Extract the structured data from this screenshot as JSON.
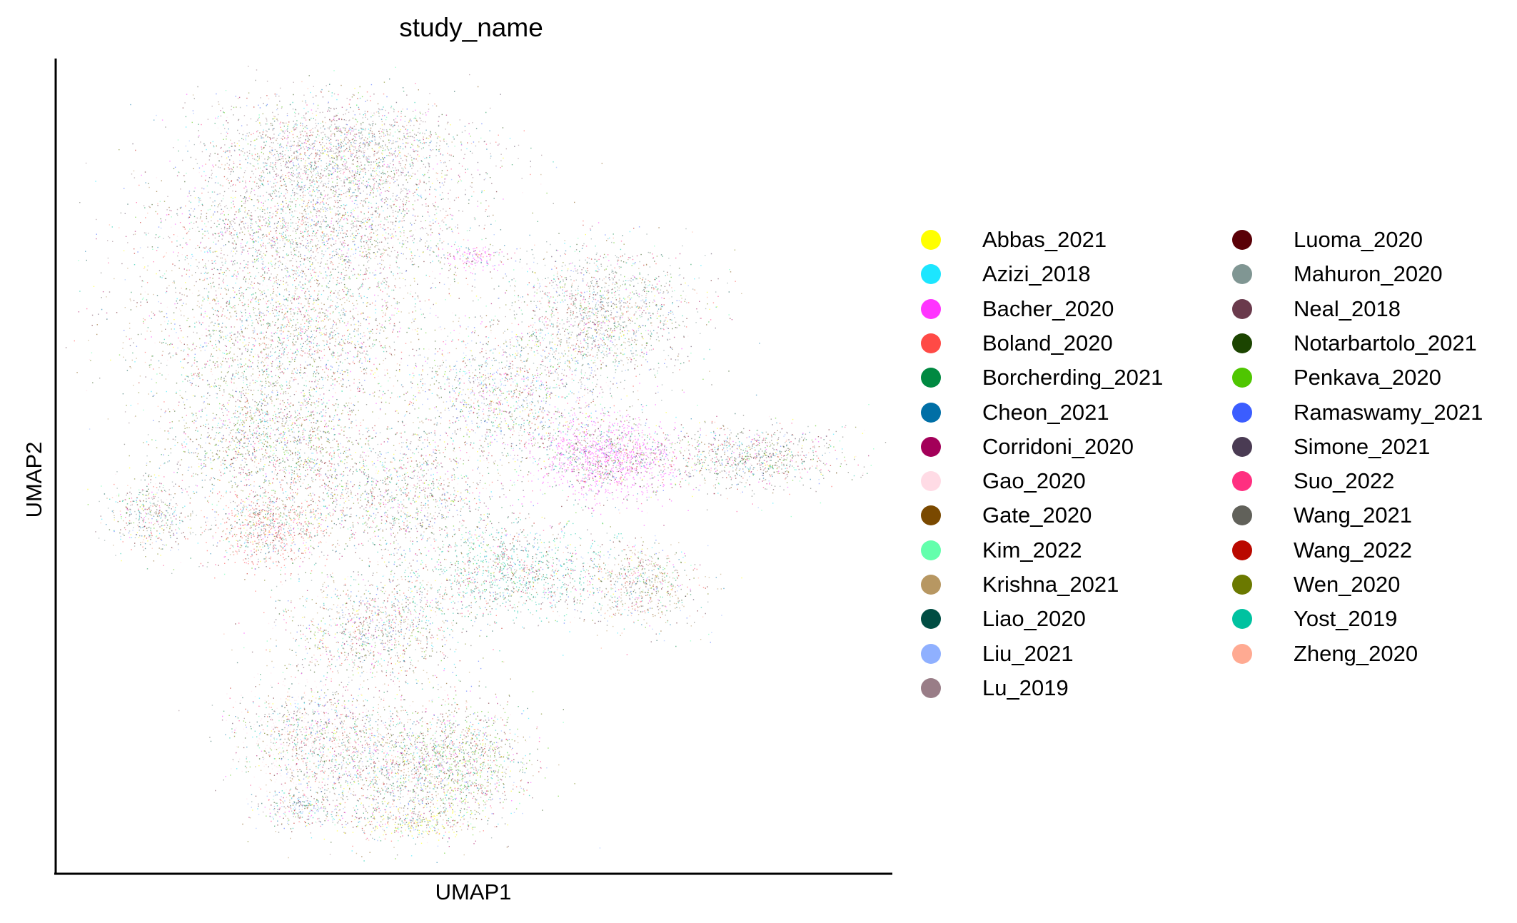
{
  "chart_data": {
    "type": "scatter",
    "title": "study_name",
    "xlabel": "UMAP1",
    "ylabel": "UMAP2",
    "grid": false,
    "x_ticks": false,
    "y_ticks": false,
    "legend_position": "right-outside",
    "legend_columns": 2,
    "series": [
      {
        "name": "Abbas_2021",
        "color": "#FFFF00"
      },
      {
        "name": "Azizi_2018",
        "color": "#1CE6FF"
      },
      {
        "name": "Bacher_2020",
        "color": "#FF34FF"
      },
      {
        "name": "Boland_2020",
        "color": "#FF4A46"
      },
      {
        "name": "Borcherding_2021",
        "color": "#008941"
      },
      {
        "name": "Cheon_2021",
        "color": "#006FA6"
      },
      {
        "name": "Corridoni_2020",
        "color": "#A30059"
      },
      {
        "name": "Gao_2020",
        "color": "#FFDBE5"
      },
      {
        "name": "Gate_2020",
        "color": "#7A4900"
      },
      {
        "name": "Kim_2022",
        "color": "#63FFAC"
      },
      {
        "name": "Krishna_2021",
        "color": "#B79762"
      },
      {
        "name": "Liao_2020",
        "color": "#004D43"
      },
      {
        "name": "Liu_2021",
        "color": "#8FB0FF"
      },
      {
        "name": "Lu_2019",
        "color": "#997D87"
      },
      {
        "name": "Luoma_2020",
        "color": "#5A0007"
      },
      {
        "name": "Mahuron_2020",
        "color": "#809693"
      },
      {
        "name": "Neal_2018",
        "color": "#6A3A4C"
      },
      {
        "name": "Notarbartolo_2021",
        "color": "#1B4400"
      },
      {
        "name": "Penkava_2020",
        "color": "#4FC601"
      },
      {
        "name": "Ramaswamy_2021",
        "color": "#3B5DFF"
      },
      {
        "name": "Simone_2021",
        "color": "#4A3B53"
      },
      {
        "name": "Suo_2022",
        "color": "#FF2F80"
      },
      {
        "name": "Wang_2021",
        "color": "#61615A"
      },
      {
        "name": "Wang_2022",
        "color": "#BA0900"
      },
      {
        "name": "Wen_2020",
        "color": "#6B7900"
      },
      {
        "name": "Yost_2019",
        "color": "#00C2A0"
      },
      {
        "name": "Zheng_2020",
        "color": "#FFAA92"
      }
    ]
  }
}
